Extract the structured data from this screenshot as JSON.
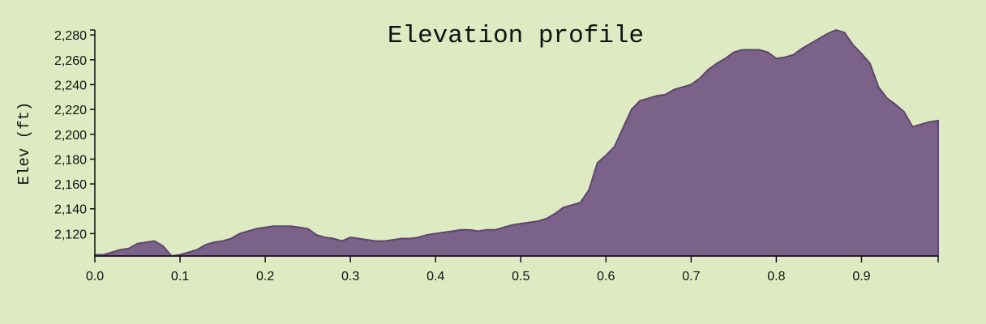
{
  "chart_data": {
    "type": "area",
    "title": "Elevation profile",
    "xlabel": "",
    "ylabel": "Elev (ft)",
    "xlim": [
      0,
      0.99
    ],
    "ylim": [
      2102,
      2284
    ],
    "x_ticks": [
      "0.0",
      "0.1",
      "0.2",
      "0.3",
      "0.4",
      "0.5",
      "0.6",
      "0.7",
      "0.8",
      "0.9"
    ],
    "y_ticks": [
      "2,120",
      "2,140",
      "2,160",
      "2,180",
      "2,200",
      "2,220",
      "2,240",
      "2,260",
      "2,280"
    ],
    "fill_color": "#7b6289",
    "stroke_color": "#5e4470",
    "background": "#deebc2",
    "grid": false,
    "series": [
      {
        "x": [
          0,
          0.01,
          0.02,
          0.03,
          0.04,
          0.05,
          0.06,
          0.07,
          0.08,
          0.09,
          0.1,
          0.11,
          0.12,
          0.13,
          0.14,
          0.15,
          0.16,
          0.17,
          0.18,
          0.19,
          0.2,
          0.21,
          0.22,
          0.23,
          0.24,
          0.25,
          0.26,
          0.27,
          0.28,
          0.29,
          0.3,
          0.31,
          0.32,
          0.33,
          0.34,
          0.35,
          0.36,
          0.37,
          0.38,
          0.39,
          0.4,
          0.41,
          0.42,
          0.43,
          0.44,
          0.45,
          0.46,
          0.47,
          0.48,
          0.49,
          0.5,
          0.51,
          0.52,
          0.53,
          0.54,
          0.55,
          0.56,
          0.57,
          0.58,
          0.59,
          0.6,
          0.61,
          0.62,
          0.63,
          0.64,
          0.65,
          0.66,
          0.67,
          0.68,
          0.69,
          0.7,
          0.71,
          0.72,
          0.73,
          0.74,
          0.75,
          0.76,
          0.77,
          0.78,
          0.79,
          0.8,
          0.81,
          0.82,
          0.83,
          0.84,
          0.85,
          0.86,
          0.87,
          0.88,
          0.89,
          0.9,
          0.91,
          0.92,
          0.93,
          0.94,
          0.95,
          0.96,
          0.97,
          0.98,
          0.99
        ],
        "values": [
          2103,
          2103,
          2105,
          2107,
          2108,
          2112,
          2113,
          2114,
          2110,
          2102,
          2103,
          2105,
          2107,
          2111,
          2113,
          2114,
          2116,
          2120,
          2122,
          2124,
          2125,
          2126,
          2126,
          2126,
          2125,
          2124,
          2119,
          2117,
          2116,
          2114,
          2117,
          2116,
          2115,
          2114,
          2114,
          2115,
          2116,
          2116,
          2117,
          2119,
          2120,
          2121,
          2122,
          2123,
          2123,
          2122,
          2123,
          2123,
          2125,
          2127,
          2128,
          2129,
          2130,
          2132,
          2136,
          2141,
          2143,
          2145,
          2155,
          2177,
          2183,
          2190,
          2205,
          2220,
          2227,
          2229,
          2231,
          2232,
          2236,
          2238,
          2240,
          2245,
          2252,
          2257,
          2261,
          2266,
          2268,
          2268,
          2268,
          2266,
          2261,
          2262,
          2264,
          2269,
          2273,
          2277,
          2281,
          2284,
          2282,
          2272,
          2265,
          2257,
          2238,
          2229,
          2224,
          2218,
          2206,
          2208,
          2210,
          2211
        ]
      }
    ]
  }
}
